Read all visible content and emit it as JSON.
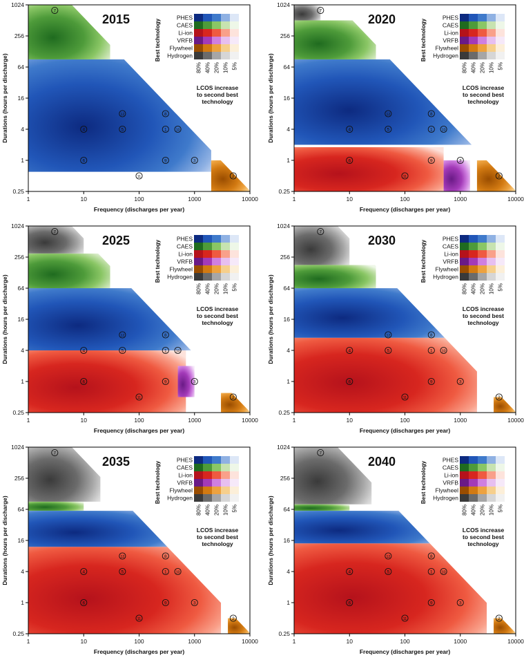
{
  "figure": {
    "xlabel": "Frequency (discharges per year)",
    "ylabel": "Durations (hours per discharge)",
    "x_ticks": [
      "1",
      "10",
      "100",
      "1000",
      "10000"
    ],
    "y_ticks": [
      "1024",
      "256",
      "64",
      "16",
      "4",
      "1",
      "0.25"
    ],
    "legend": {
      "title": "Best technology",
      "technologies": [
        "PHES",
        "CAES",
        "Li-ion",
        "VRFB",
        "Flywheel",
        "Hydrogen"
      ],
      "increase_levels": [
        "80%",
        "40%",
        "20%",
        "10%",
        "5%"
      ],
      "caption": "LCOS increase to second best technology",
      "caption_lines": [
        "LCOS increase",
        "to second best",
        "technology"
      ]
    },
    "application_labels": [
      "1",
      "2",
      "3",
      "4",
      "5",
      "6",
      "7",
      "8",
      "9",
      "10",
      "11",
      "12"
    ]
  },
  "colors": {
    "PHES": [
      "#0d2a80",
      "#2156b8",
      "#3f7acb",
      "#8fb1e3",
      "#dde7f7"
    ],
    "CAES": [
      "#1f6b1f",
      "#4e9b3a",
      "#8ac665",
      "#c7e3b0",
      "#eef7e8"
    ],
    "Li-ion": [
      "#b5121b",
      "#d7261f",
      "#ef5a41",
      "#f9a08a",
      "#fde3dc"
    ],
    "VRFB": [
      "#6a1a86",
      "#a33ab8",
      "#cf7fe0",
      "#e7bff0",
      "#f6e9f9"
    ],
    "Flywheel": [
      "#9a4d00",
      "#d27a12",
      "#eda23f",
      "#f6cf8c",
      "#fcefd9"
    ],
    "Hydrogen": [
      "#3a3a3a",
      "#6b6b6b",
      "#a6a6a6",
      "#d6d6d6",
      "#f1f1f1"
    ]
  },
  "chart_data": [
    {
      "type": "heatmap",
      "title": "2015",
      "xlabel": "Frequency (discharges per year)",
      "ylabel": "Durations (hours per discharge)",
      "x_scale": "log",
      "y_scale": "log2",
      "xlim": [
        1,
        10000
      ],
      "ylim": [
        0.25,
        1024
      ],
      "regions": [
        {
          "technology": "CAES",
          "x_range": [
            1,
            30
          ],
          "y_range": [
            90,
            1024
          ]
        },
        {
          "technology": "PHES",
          "x_range": [
            1,
            2000
          ],
          "y_range": [
            0.6,
            90
          ]
        },
        {
          "technology": "Flywheel",
          "x_range": [
            2000,
            10000
          ],
          "y_range": [
            0.25,
            1
          ]
        }
      ],
      "applications": [
        {
          "id": "7",
          "frequency": 3,
          "duration": 800
        },
        {
          "id": "12",
          "frequency": 50,
          "duration": 8
        },
        {
          "id": "8",
          "frequency": 300,
          "duration": 8
        },
        {
          "id": "4",
          "frequency": 10,
          "duration": 4
        },
        {
          "id": "5",
          "frequency": 50,
          "duration": 4
        },
        {
          "id": "1",
          "frequency": 300,
          "duration": 4
        },
        {
          "id": "10",
          "frequency": 500,
          "duration": 4
        },
        {
          "id": "6",
          "frequency": 10,
          "duration": 1
        },
        {
          "id": "9",
          "frequency": 300,
          "duration": 1
        },
        {
          "id": "3",
          "frequency": 1000,
          "duration": 1
        },
        {
          "id": "11",
          "frequency": 100,
          "duration": 0.5
        },
        {
          "id": "2",
          "frequency": 5000,
          "duration": 0.5
        }
      ]
    },
    {
      "type": "heatmap",
      "title": "2020",
      "xlabel": "Frequency (discharges per year)",
      "ylabel": "Durations (hours per discharge)",
      "x_scale": "log",
      "y_scale": "log2",
      "xlim": [
        1,
        10000
      ],
      "ylim": [
        0.25,
        1024
      ],
      "regions": [
        {
          "technology": "Hydrogen",
          "x_range": [
            1,
            3
          ],
          "y_range": [
            512,
            1024
          ]
        },
        {
          "technology": "CAES",
          "x_range": [
            1,
            30
          ],
          "y_range": [
            90,
            512
          ]
        },
        {
          "technology": "PHES",
          "x_range": [
            1,
            2000
          ],
          "y_range": [
            2,
            90
          ]
        },
        {
          "technology": "Li-ion",
          "x_range": [
            1,
            500
          ],
          "y_range": [
            0.25,
            1.8
          ]
        },
        {
          "technology": "VRFB",
          "x_range": [
            500,
            1500
          ],
          "y_range": [
            0.25,
            1
          ]
        },
        {
          "technology": "Flywheel",
          "x_range": [
            2000,
            10000
          ],
          "y_range": [
            0.25,
            1
          ]
        }
      ],
      "applications": [
        {
          "id": "7",
          "frequency": 3,
          "duration": 800
        },
        {
          "id": "12",
          "frequency": 50,
          "duration": 8
        },
        {
          "id": "8",
          "frequency": 300,
          "duration": 8
        },
        {
          "id": "4",
          "frequency": 10,
          "duration": 4
        },
        {
          "id": "5",
          "frequency": 50,
          "duration": 4
        },
        {
          "id": "1",
          "frequency": 300,
          "duration": 4
        },
        {
          "id": "10",
          "frequency": 500,
          "duration": 4
        },
        {
          "id": "6",
          "frequency": 10,
          "duration": 1
        },
        {
          "id": "9",
          "frequency": 300,
          "duration": 1
        },
        {
          "id": "3",
          "frequency": 1000,
          "duration": 1
        },
        {
          "id": "11",
          "frequency": 100,
          "duration": 0.5
        },
        {
          "id": "2",
          "frequency": 5000,
          "duration": 0.5
        }
      ]
    },
    {
      "type": "heatmap",
      "title": "2025",
      "xlabel": "Frequency (discharges per year)",
      "ylabel": "Durations (hours per discharge)",
      "x_scale": "log",
      "y_scale": "log2",
      "xlim": [
        1,
        10000
      ],
      "ylim": [
        0.25,
        1024
      ],
      "regions": [
        {
          "technology": "Hydrogen",
          "x_range": [
            1,
            10
          ],
          "y_range": [
            300,
            1024
          ]
        },
        {
          "technology": "CAES",
          "x_range": [
            1,
            30
          ],
          "y_range": [
            64,
            300
          ]
        },
        {
          "technology": "PHES",
          "x_range": [
            1,
            1000
          ],
          "y_range": [
            4,
            64
          ]
        },
        {
          "technology": "Li-ion",
          "x_range": [
            1,
            700
          ],
          "y_range": [
            0.25,
            4
          ]
        },
        {
          "technology": "VRFB",
          "x_range": [
            500,
            1000
          ],
          "y_range": [
            0.5,
            2
          ]
        },
        {
          "technology": "Flywheel",
          "x_range": [
            3000,
            10000
          ],
          "y_range": [
            0.25,
            0.6
          ]
        }
      ],
      "applications": [
        {
          "id": "7",
          "frequency": 3,
          "duration": 800
        },
        {
          "id": "12",
          "frequency": 50,
          "duration": 8
        },
        {
          "id": "8",
          "frequency": 300,
          "duration": 8
        },
        {
          "id": "4",
          "frequency": 10,
          "duration": 4
        },
        {
          "id": "5",
          "frequency": 50,
          "duration": 4
        },
        {
          "id": "1",
          "frequency": 300,
          "duration": 4
        },
        {
          "id": "10",
          "frequency": 500,
          "duration": 4
        },
        {
          "id": "6",
          "frequency": 10,
          "duration": 1
        },
        {
          "id": "9",
          "frequency": 300,
          "duration": 1
        },
        {
          "id": "3",
          "frequency": 1000,
          "duration": 1
        },
        {
          "id": "11",
          "frequency": 100,
          "duration": 0.5
        },
        {
          "id": "2",
          "frequency": 5000,
          "duration": 0.5
        }
      ]
    },
    {
      "type": "heatmap",
      "title": "2030",
      "xlabel": "Frequency (discharges per year)",
      "ylabel": "Durations (hours per discharge)",
      "x_scale": "log",
      "y_scale": "log2",
      "xlim": [
        1,
        10000
      ],
      "ylim": [
        0.25,
        1024
      ],
      "regions": [
        {
          "technology": "Hydrogen",
          "x_range": [
            1,
            10
          ],
          "y_range": [
            180,
            1024
          ]
        },
        {
          "technology": "CAES",
          "x_range": [
            1,
            30
          ],
          "y_range": [
            64,
            180
          ]
        },
        {
          "technology": "PHES",
          "x_range": [
            1,
            800
          ],
          "y_range": [
            7,
            64
          ]
        },
        {
          "technology": "Li-ion",
          "x_range": [
            1,
            2000
          ],
          "y_range": [
            0.25,
            7
          ]
        },
        {
          "technology": "Flywheel",
          "x_range": [
            4000,
            10000
          ],
          "y_range": [
            0.25,
            0.5
          ]
        }
      ],
      "applications": [
        {
          "id": "7",
          "frequency": 3,
          "duration": 800
        },
        {
          "id": "12",
          "frequency": 50,
          "duration": 8
        },
        {
          "id": "8",
          "frequency": 300,
          "duration": 8
        },
        {
          "id": "4",
          "frequency": 10,
          "duration": 4
        },
        {
          "id": "5",
          "frequency": 50,
          "duration": 4
        },
        {
          "id": "1",
          "frequency": 300,
          "duration": 4
        },
        {
          "id": "10",
          "frequency": 500,
          "duration": 4
        },
        {
          "id": "6",
          "frequency": 10,
          "duration": 1
        },
        {
          "id": "9",
          "frequency": 300,
          "duration": 1
        },
        {
          "id": "3",
          "frequency": 1000,
          "duration": 1
        },
        {
          "id": "11",
          "frequency": 100,
          "duration": 0.5
        },
        {
          "id": "2",
          "frequency": 5000,
          "duration": 0.5
        }
      ]
    },
    {
      "type": "heatmap",
      "title": "2035",
      "xlabel": "Frequency (discharges per year)",
      "ylabel": "Durations (hours per discharge)",
      "x_scale": "log",
      "y_scale": "log2",
      "xlim": [
        1,
        10000
      ],
      "ylim": [
        0.25,
        1024
      ],
      "regions": [
        {
          "technology": "Hydrogen",
          "x_range": [
            1,
            20
          ],
          "y_range": [
            90,
            1024
          ]
        },
        {
          "technology": "CAES",
          "x_range": [
            1,
            10
          ],
          "y_range": [
            60,
            90
          ]
        },
        {
          "technology": "PHES",
          "x_range": [
            1,
            600
          ],
          "y_range": [
            12,
            60
          ]
        },
        {
          "technology": "Li-ion",
          "x_range": [
            1,
            3000
          ],
          "y_range": [
            0.25,
            12
          ]
        },
        {
          "technology": "Flywheel",
          "x_range": [
            4000,
            10000
          ],
          "y_range": [
            0.25,
            0.5
          ]
        }
      ],
      "applications": [
        {
          "id": "7",
          "frequency": 3,
          "duration": 800
        },
        {
          "id": "12",
          "frequency": 50,
          "duration": 8
        },
        {
          "id": "8",
          "frequency": 300,
          "duration": 8
        },
        {
          "id": "4",
          "frequency": 10,
          "duration": 4
        },
        {
          "id": "5",
          "frequency": 50,
          "duration": 4
        },
        {
          "id": "1",
          "frequency": 300,
          "duration": 4
        },
        {
          "id": "10",
          "frequency": 500,
          "duration": 4
        },
        {
          "id": "6",
          "frequency": 10,
          "duration": 1
        },
        {
          "id": "9",
          "frequency": 300,
          "duration": 1
        },
        {
          "id": "3",
          "frequency": 1000,
          "duration": 1
        },
        {
          "id": "11",
          "frequency": 100,
          "duration": 0.5
        },
        {
          "id": "2",
          "frequency": 5000,
          "duration": 0.5
        }
      ]
    },
    {
      "type": "heatmap",
      "title": "2040",
      "xlabel": "Frequency (discharges per year)",
      "ylabel": "Durations (hours per discharge)",
      "x_scale": "log",
      "y_scale": "log2",
      "xlim": [
        1,
        10000
      ],
      "ylim": [
        0.25,
        1024
      ],
      "regions": [
        {
          "technology": "Hydrogen",
          "x_range": [
            1,
            25
          ],
          "y_range": [
            80,
            1024
          ]
        },
        {
          "technology": "CAES",
          "x_range": [
            1,
            10
          ],
          "y_range": [
            60,
            80
          ]
        },
        {
          "technology": "PHES",
          "x_range": [
            1,
            500
          ],
          "y_range": [
            14,
            60
          ]
        },
        {
          "technology": "Li-ion",
          "x_range": [
            1,
            3000
          ],
          "y_range": [
            0.25,
            14
          ]
        },
        {
          "technology": "Flywheel",
          "x_range": [
            4000,
            10000
          ],
          "y_range": [
            0.25,
            0.5
          ]
        }
      ],
      "applications": [
        {
          "id": "7",
          "frequency": 3,
          "duration": 800
        },
        {
          "id": "12",
          "frequency": 50,
          "duration": 8
        },
        {
          "id": "8",
          "frequency": 300,
          "duration": 8
        },
        {
          "id": "4",
          "frequency": 10,
          "duration": 4
        },
        {
          "id": "5",
          "frequency": 50,
          "duration": 4
        },
        {
          "id": "1",
          "frequency": 300,
          "duration": 4
        },
        {
          "id": "10",
          "frequency": 500,
          "duration": 4
        },
        {
          "id": "6",
          "frequency": 10,
          "duration": 1
        },
        {
          "id": "9",
          "frequency": 300,
          "duration": 1
        },
        {
          "id": "3",
          "frequency": 1000,
          "duration": 1
        },
        {
          "id": "11",
          "frequency": 100,
          "duration": 0.5
        },
        {
          "id": "2",
          "frequency": 5000,
          "duration": 0.5
        }
      ]
    }
  ]
}
